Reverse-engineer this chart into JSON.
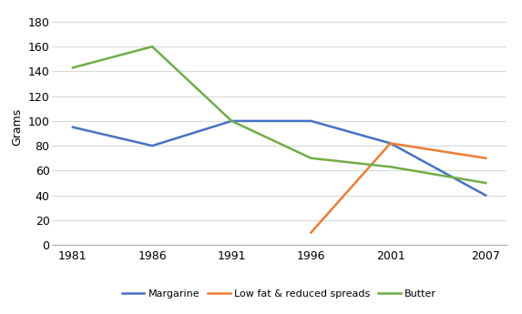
{
  "years": [
    1981,
    1986,
    1991,
    1996,
    2001,
    2007
  ],
  "margarine": [
    95,
    80,
    100,
    100,
    82,
    40
  ],
  "low_fat": [
    null,
    null,
    null,
    10,
    82,
    70
  ],
  "butter": [
    143,
    160,
    100,
    70,
    63,
    50
  ],
  "margarine_color": "#4472C4",
  "low_fat_color": "#ED7D31",
  "butter_color": "#70AD47",
  "ylabel": "Grams",
  "ylim": [
    0,
    190
  ],
  "yticks": [
    0,
    20,
    40,
    60,
    80,
    100,
    120,
    140,
    160,
    180
  ],
  "legend_labels": [
    "Margarine",
    "Low fat & reduced spreads",
    "Butter"
  ],
  "background_color": "#FFFFFF",
  "grid_color": "#D9D9D9",
  "line_width": 1.8,
  "tick_fontsize": 9,
  "ylabel_fontsize": 9,
  "legend_fontsize": 8
}
